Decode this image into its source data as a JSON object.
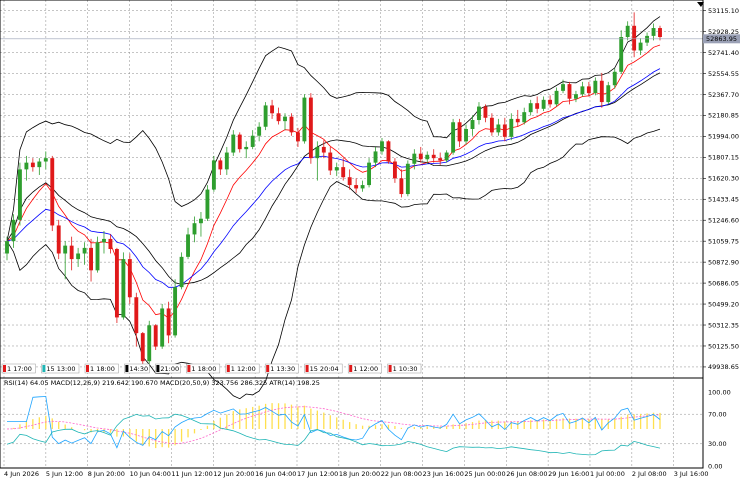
{
  "colors": {
    "bull": "#2e9e2e",
    "bear": "#e0191a",
    "bb": "#000000",
    "ma_fast": "#ff0000",
    "ma_slow": "#0000ff",
    "grid": "#8c8c8c",
    "price_line": "#9aa0b5",
    "price_tag_bg": "#9aa0b5",
    "rsi": "#1fa5ff",
    "macd_hist": "#ffe04d",
    "macd_signal": "#ff66cc",
    "atr": "#1fb5b5"
  },
  "price_axis": {
    "labels": [
      "53115.10",
      "52928.25",
      "52741.40",
      "52554.55",
      "52367.70",
      "52180.85",
      "51994.00",
      "51807.15",
      "51620.30",
      "51433.45",
      "51246.60",
      "51059.75",
      "50872.90",
      "50686.05",
      "50499.20",
      "50312.35",
      "50125.50",
      "49938.65"
    ],
    "current_price": "52863.95"
  },
  "time_axis": {
    "labels": [
      "4 Jun 2026",
      "5 Jun 12:00",
      "8 Jun 20:00",
      "10 Jun 04:00",
      "11 Jun 12:00",
      "12 Jun 20:00",
      "16 Jun 04:00",
      "17 Jun 12:00",
      "18 Jun 20:00",
      "22 Jun 08:00",
      "23 Jun 16:00",
      "25 Jun 00:00",
      "26 Jun 08:00",
      "29 Jun 16:00",
      "1 Jul 00:00",
      "2 Jul 08:00",
      "3 Jul 16:00"
    ]
  },
  "event_markers": [
    {
      "label": "1",
      "time": "17:00",
      "color": "#e0191a"
    },
    {
      "label": "15",
      "time": "13:00",
      "color": "#1fb5b5"
    },
    {
      "label": "1",
      "time": "18:00",
      "color": "#e0191a"
    },
    {
      "label": "",
      "time": "14:30",
      "color": "#000000"
    },
    {
      "label": "",
      "time": "21:00",
      "color": "#000000"
    },
    {
      "label": "1",
      "time": "18:00",
      "color": "#e0191a"
    },
    {
      "label": "1",
      "time": "12:00",
      "color": "#e0191a"
    },
    {
      "label": "1",
      "time": "13:30",
      "color": "#e0191a"
    },
    {
      "label": "15",
      "time": "20:04",
      "color": "#e0191a"
    },
    {
      "label": "1",
      "time": "12:00",
      "color": "#e0191a"
    },
    {
      "label": "1",
      "time": "10:30",
      "color": "#e0191a"
    }
  ],
  "indicator_panel": {
    "legend": "RSI(14) 64.05 MACD(12,26,9) 219.642 190.670 MACD(20,50,9) 323.756 286.325 ATR(14) 198.25",
    "levels": [
      "100.00",
      "70.00",
      "30.00",
      "0.00"
    ],
    "level_values": [
      100,
      70,
      30,
      0
    ]
  },
  "chart_data": {
    "type": "candlestick",
    "ylim": [
      49840,
      53210
    ],
    "candles": [
      [
        50950,
        51100,
        50890,
        51060
      ],
      [
        51060,
        51300,
        51000,
        51250
      ],
      [
        51250,
        51760,
        51200,
        51700
      ],
      [
        51700,
        51820,
        51600,
        51760
      ],
      [
        51760,
        51800,
        51680,
        51720
      ],
      [
        51720,
        51800,
        51650,
        51770
      ],
      [
        51770,
        51860,
        51700,
        51800
      ],
      [
        51800,
        51820,
        51150,
        51200
      ],
      [
        51200,
        51250,
        50900,
        50950
      ],
      [
        50950,
        51060,
        50720,
        51020
      ],
      [
        51020,
        51100,
        50800,
        50900
      ],
      [
        50900,
        51000,
        50830,
        50950
      ],
      [
        50950,
        51050,
        50850,
        51000
      ],
      [
        51000,
        51080,
        50700,
        50800
      ],
      [
        50800,
        51100,
        50780,
        51050
      ],
      [
        51050,
        51150,
        50950,
        51080
      ],
      [
        51080,
        51120,
        50950,
        50990
      ],
      [
        50990,
        51000,
        50330,
        50380
      ],
      [
        50380,
        50960,
        50360,
        50900
      ],
      [
        50900,
        50950,
        50500,
        50560
      ],
      [
        50560,
        50600,
        50120,
        50240
      ],
      [
        50240,
        50250,
        49940,
        49990
      ],
      [
        49990,
        50350,
        49960,
        50310
      ],
      [
        50310,
        50320,
        50090,
        50120
      ],
      [
        50120,
        50500,
        50100,
        50460
      ],
      [
        50460,
        50520,
        50150,
        50220
      ],
      [
        50220,
        50720,
        50200,
        50650
      ],
      [
        50650,
        50960,
        50630,
        50920
      ],
      [
        50920,
        51180,
        50900,
        51120
      ],
      [
        51120,
        51280,
        51050,
        51220
      ],
      [
        51220,
        51320,
        51100,
        51260
      ],
      [
        51260,
        51560,
        51240,
        51520
      ],
      [
        51520,
        51820,
        51500,
        51780
      ],
      [
        51780,
        51800,
        51650,
        51700
      ],
      [
        51700,
        51900,
        51650,
        51850
      ],
      [
        51850,
        52050,
        51820,
        52010
      ],
      [
        52010,
        52030,
        51850,
        51880
      ],
      [
        51880,
        51950,
        51800,
        51900
      ],
      [
        51900,
        52050,
        51880,
        52000
      ],
      [
        52000,
        52120,
        51950,
        52080
      ],
      [
        52080,
        52300,
        52050,
        52270
      ],
      [
        52270,
        52320,
        52150,
        52200
      ],
      [
        52200,
        52250,
        52100,
        52130
      ],
      [
        52130,
        52200,
        52050,
        52170
      ],
      [
        52170,
        52200,
        52000,
        52030
      ],
      [
        52030,
        52070,
        51900,
        51950
      ],
      [
        51950,
        52370,
        51930,
        52340
      ],
      [
        52340,
        52380,
        51750,
        51800
      ],
      [
        51800,
        51950,
        51600,
        51900
      ],
      [
        51900,
        51960,
        51800,
        51850
      ],
      [
        51850,
        51900,
        51650,
        51690
      ],
      [
        51690,
        51760,
        51640,
        51720
      ],
      [
        51720,
        51800,
        51600,
        51630
      ],
      [
        51630,
        51700,
        51520,
        51560
      ],
      [
        51560,
        51620,
        51490,
        51530
      ],
      [
        51530,
        51600,
        51500,
        51560
      ],
      [
        51560,
        51800,
        51540,
        51760
      ],
      [
        51760,
        51900,
        51720,
        51860
      ],
      [
        51860,
        51980,
        51830,
        51950
      ],
      [
        51950,
        51960,
        51750,
        51770
      ],
      [
        51770,
        51800,
        51580,
        51620
      ],
      [
        51620,
        51700,
        51450,
        51480
      ],
      [
        51480,
        51780,
        51460,
        51750
      ],
      [
        51750,
        51880,
        51700,
        51840
      ],
      [
        51840,
        51900,
        51760,
        51790
      ],
      [
        51790,
        51860,
        51750,
        51830
      ],
      [
        51830,
        51880,
        51760,
        51800
      ],
      [
        51800,
        51850,
        51740,
        51780
      ],
      [
        51780,
        51870,
        51760,
        51850
      ],
      [
        51850,
        52150,
        51830,
        52120
      ],
      [
        52120,
        52150,
        51900,
        51950
      ],
      [
        51950,
        52100,
        51920,
        52060
      ],
      [
        52060,
        52180,
        52000,
        52140
      ],
      [
        52140,
        52300,
        52100,
        52260
      ],
      [
        52260,
        52280,
        52120,
        52160
      ],
      [
        52160,
        52200,
        52000,
        52030
      ],
      [
        52030,
        52150,
        52000,
        52100
      ],
      [
        52100,
        52160,
        51950,
        51990
      ],
      [
        51990,
        52200,
        51960,
        52150
      ],
      [
        52150,
        52230,
        52080,
        52120
      ],
      [
        52120,
        52250,
        52100,
        52210
      ],
      [
        52210,
        52320,
        52180,
        52290
      ],
      [
        52290,
        52350,
        52200,
        52240
      ],
      [
        52240,
        52350,
        52220,
        52320
      ],
      [
        52320,
        52360,
        52250,
        52280
      ],
      [
        52280,
        52430,
        52260,
        52400
      ],
      [
        52400,
        52500,
        52380,
        52460
      ],
      [
        52460,
        52480,
        52280,
        52330
      ],
      [
        52330,
        52400,
        52300,
        52370
      ],
      [
        52370,
        52480,
        52350,
        52440
      ],
      [
        52440,
        52480,
        52350,
        52380
      ],
      [
        52380,
        52520,
        52360,
        52490
      ],
      [
        52490,
        52560,
        52250,
        52300
      ],
      [
        52300,
        52480,
        52280,
        52450
      ],
      [
        52450,
        52600,
        52420,
        52570
      ],
      [
        52570,
        52940,
        52550,
        52880
      ],
      [
        52880,
        53020,
        52850,
        52980
      ],
      [
        52980,
        53100,
        52700,
        52760
      ],
      [
        52760,
        52870,
        52720,
        52830
      ],
      [
        52830,
        52920,
        52800,
        52890
      ],
      [
        52890,
        53000,
        52850,
        52960
      ],
      [
        52960,
        52980,
        52850,
        52880
      ]
    ],
    "indicator_ylim": [
      0,
      100
    ],
    "rsi_levels": [
      70,
      30
    ]
  }
}
